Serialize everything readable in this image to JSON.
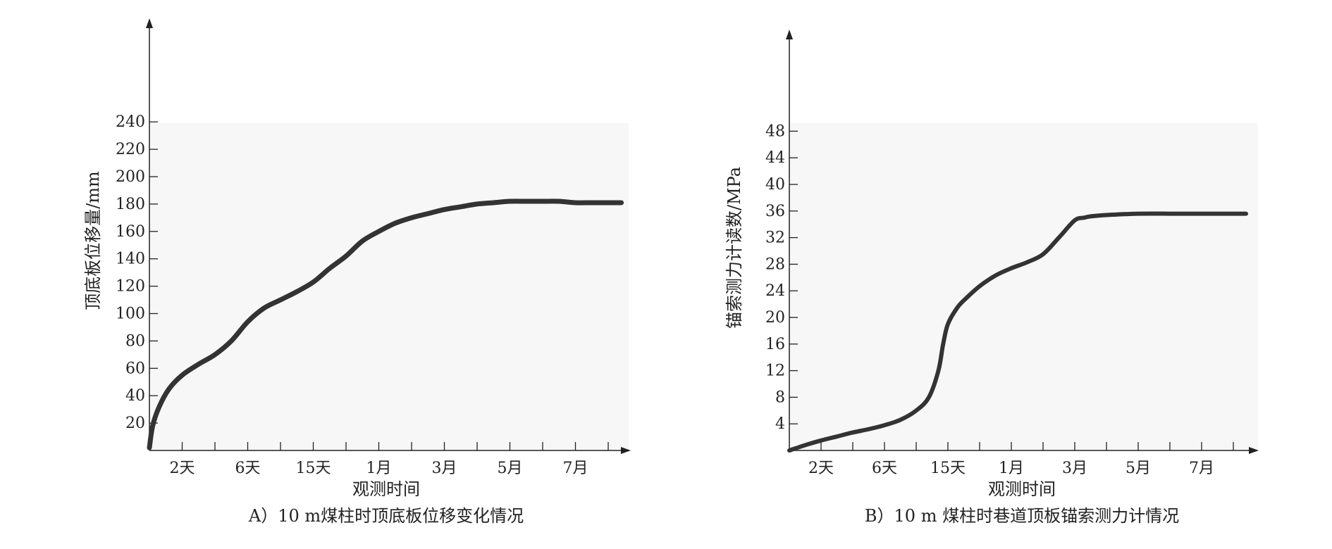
{
  "chart_data": [
    {
      "type": "line",
      "caption": "A）10 m煤柱时顶底板位移变化情况",
      "xlabel": "观测时间",
      "ylabel": "顶底板位移量/mm",
      "ylim": [
        0,
        250
      ],
      "yticks": [
        20,
        40,
        60,
        80,
        100,
        120,
        140,
        160,
        180,
        200,
        220,
        240
      ],
      "xlim": [
        0,
        14.5
      ],
      "xtick_positions": [
        1,
        2,
        3,
        4,
        5,
        6,
        7,
        8,
        9,
        10,
        11,
        12,
        13,
        14
      ],
      "xtick_labels": [
        {
          "label": "2天",
          "x": 1
        },
        {
          "label": "6天",
          "x": 3
        },
        {
          "label": "15天",
          "x": 5
        },
        {
          "label": "1月",
          "x": 7
        },
        {
          "label": "3月",
          "x": 9
        },
        {
          "label": "5月",
          "x": 11
        },
        {
          "label": "7月",
          "x": 13
        }
      ],
      "grid": false,
      "series": [
        {
          "color": "#333333",
          "x": [
            0,
            0.1,
            0.3,
            0.6,
            1.0,
            1.5,
            2.0,
            2.5,
            3.0,
            3.5,
            4.0,
            4.5,
            5.0,
            5.5,
            6.0,
            6.5,
            7.0,
            7.5,
            8.0,
            8.5,
            9.0,
            9.5,
            10.0,
            10.5,
            11.0,
            11.5,
            12.0,
            12.5,
            13.0,
            13.5,
            14.0,
            14.4
          ],
          "y": [
            2,
            18,
            32,
            45,
            55,
            63,
            70,
            80,
            94,
            104,
            110,
            116,
            123,
            133,
            142,
            153,
            160,
            166,
            170,
            173,
            176,
            178,
            180,
            181,
            182,
            182,
            182,
            182,
            181,
            181,
            181,
            181
          ]
        }
      ]
    },
    {
      "type": "line",
      "caption": "B）10 m 煤柱时巷道顶板锚索测力计情况",
      "xlabel": "观测时间",
      "ylabel": "锚索测力计读数/MPa",
      "ylim": [
        0,
        52
      ],
      "yticks": [
        4,
        8,
        12,
        16,
        20,
        24,
        28,
        32,
        36,
        40,
        44,
        48
      ],
      "xlim": [
        0,
        14.5
      ],
      "xtick_positions": [
        1,
        2,
        3,
        4,
        5,
        6,
        7,
        8,
        9,
        10,
        11,
        12,
        13,
        14
      ],
      "xtick_labels": [
        {
          "label": "2天",
          "x": 1
        },
        {
          "label": "6天",
          "x": 3
        },
        {
          "label": "15天",
          "x": 5
        },
        {
          "label": "1月",
          "x": 7
        },
        {
          "label": "3月",
          "x": 9
        },
        {
          "label": "5月",
          "x": 11
        },
        {
          "label": "7月",
          "x": 13
        }
      ],
      "grid": false,
      "series": [
        {
          "color": "#333333",
          "x": [
            0,
            0.5,
            1.0,
            1.5,
            2.0,
            2.5,
            3.0,
            3.5,
            4.0,
            4.4,
            4.7,
            4.85,
            5.0,
            5.3,
            5.6,
            6.0,
            6.5,
            7.0,
            7.5,
            8.0,
            8.5,
            9.0,
            9.3,
            9.5,
            10.0,
            11.0,
            12.0,
            13.0,
            14.0,
            14.4
          ],
          "y": [
            0,
            0.8,
            1.5,
            2.1,
            2.7,
            3.2,
            3.8,
            4.6,
            6.0,
            8.0,
            12.0,
            16.0,
            19.0,
            21.5,
            23.0,
            24.7,
            26.3,
            27.4,
            28.3,
            29.5,
            32.0,
            34.6,
            35.0,
            35.2,
            35.4,
            35.6,
            35.6,
            35.6,
            35.6,
            35.6
          ]
        }
      ]
    }
  ]
}
